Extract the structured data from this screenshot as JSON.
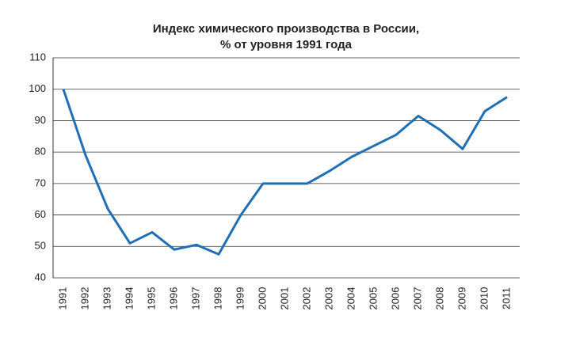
{
  "chart_data": {
    "type": "line",
    "title": [
      "Индекс химического производства в России,",
      "% от уровня 1991 года"
    ],
    "categories": [
      "1991",
      "1992",
      "1993",
      "1994",
      "1995",
      "1996",
      "1997",
      "1998",
      "1999",
      "2000",
      "2001",
      "2002",
      "2003",
      "2004",
      "2005",
      "2006",
      "2007",
      "2008",
      "2009",
      "2010",
      "2011"
    ],
    "values": [
      100,
      79,
      62,
      51,
      54.5,
      49,
      50.5,
      47.5,
      60,
      70,
      70,
      70,
      74,
      78.5,
      82,
      85.5,
      91.5,
      87,
      81,
      93,
      97.5
    ],
    "color": "#1f6fb5",
    "ylim": [
      40,
      110
    ],
    "yticks": [
      40,
      50,
      60,
      70,
      80,
      90,
      100,
      110
    ],
    "grid": true
  }
}
